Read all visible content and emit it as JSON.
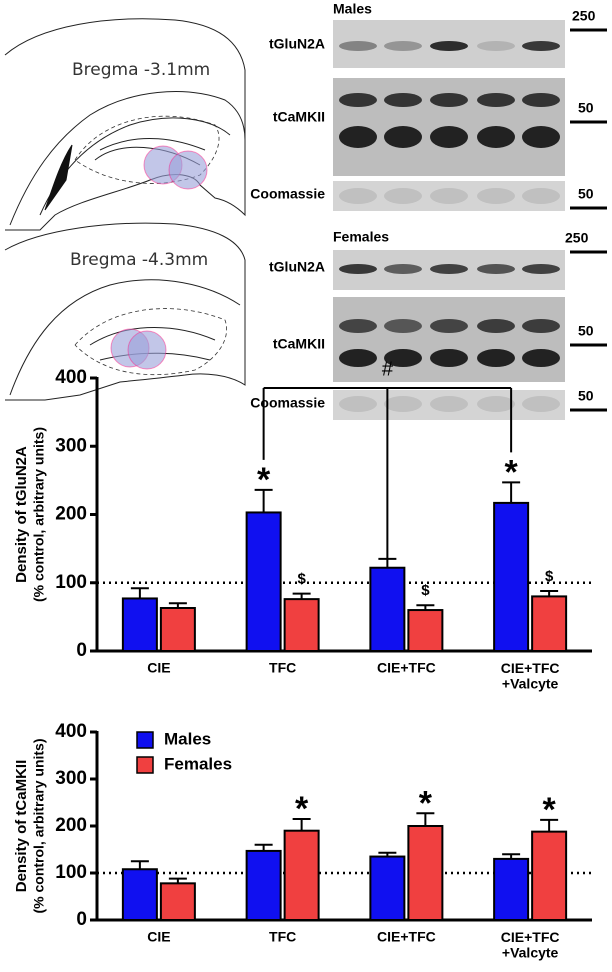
{
  "figure": {
    "atlas": [
      "Bregma -3.1mm",
      "Bregma -4.3mm"
    ],
    "males_blot": {
      "title": "Males",
      "rows": [
        "tGluN2A",
        "tCaMKII",
        "Coomassie"
      ],
      "markers": [
        "250",
        "50",
        "50"
      ]
    },
    "females_blot": {
      "title": "Females",
      "rows": [
        "tGluN2A",
        "tCaMKII",
        "Coomassie"
      ],
      "markers": [
        "250",
        "50",
        "50"
      ]
    }
  },
  "chart_data": [
    {
      "type": "bar",
      "ylabel": [
        "Density of tGluN2A",
        "(% control, arbitrary units)"
      ],
      "categories": [
        "CIE",
        "TFC",
        "CIE+TFC",
        "CIE+TFC\n+Valcyte"
      ],
      "series": [
        {
          "name": "Males",
          "color": "#1010f0",
          "values": [
            77,
            203,
            122,
            217
          ],
          "errors": [
            15,
            33,
            13,
            30
          ],
          "sig": [
            null,
            "*",
            null,
            "*"
          ]
        },
        {
          "name": "Females",
          "color": "#f04040",
          "values": [
            63,
            76,
            60,
            80
          ],
          "errors": [
            7,
            8,
            7,
            8
          ],
          "sig": [
            null,
            "$",
            "$",
            "$"
          ]
        }
      ],
      "bracket_label": "#",
      "reference_line": 100,
      "ylim": [
        0,
        400
      ],
      "yticks": [
        0,
        100,
        200,
        300,
        400
      ],
      "legend": false
    },
    {
      "type": "bar",
      "ylabel": [
        "Density of tCaMKII",
        "(% control, arbitrary units)"
      ],
      "categories": [
        "CIE",
        "TFC",
        "CIE+TFC",
        "CIE+TFC\n+Valcyte"
      ],
      "series": [
        {
          "name": "Males",
          "color": "#1010f0",
          "values": [
            108,
            147,
            135,
            130
          ],
          "errors": [
            17,
            13,
            8,
            10
          ],
          "sig": [
            null,
            null,
            null,
            null
          ]
        },
        {
          "name": "Females",
          "color": "#f04040",
          "values": [
            78,
            190,
            200,
            188
          ],
          "errors": [
            10,
            25,
            27,
            25
          ],
          "sig": [
            null,
            "*",
            "*",
            "*"
          ]
        }
      ],
      "reference_line": 100,
      "ylim": [
        0,
        400
      ],
      "yticks": [
        0,
        100,
        200,
        300,
        400
      ],
      "legend": true,
      "legend_corner": "top-left"
    }
  ]
}
